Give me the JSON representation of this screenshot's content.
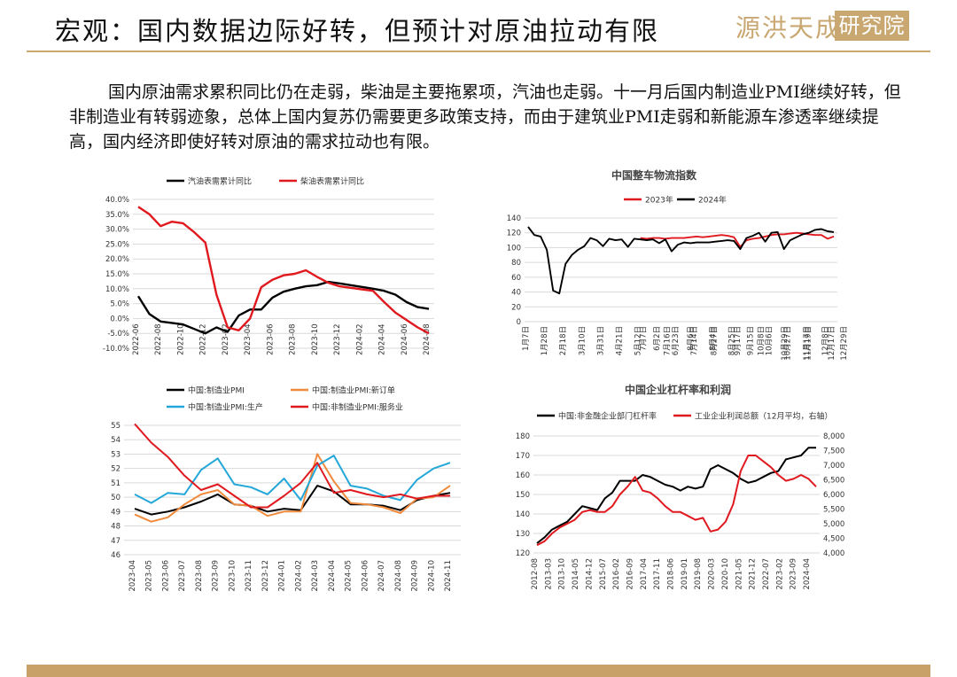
{
  "header": {
    "title": "宏观：国内数据边际好转，但预计对原油拉动有限",
    "logo_text": "源洪天成",
    "logo_box_text": "研究院",
    "accent_color": "#c9a771"
  },
  "body": {
    "paragraph": "国内原油需求累积同比仍在走弱，柴油是主要拖累项，汽油也走弱。十一月后国内制造业PMI继续好转，但非制造业有转弱迹象，总体上国内复苏仍需要更多政策支持，而由于建筑业PMI走弱和新能源车渗透率继续提高，国内经济即使好转对原油的需求拉动也有限。"
  },
  "chart_data": [
    {
      "type": "line",
      "title": "",
      "y_ticks": [
        "40.0%",
        "35.0%",
        "30.0%",
        "25.0%",
        "20.0%",
        "15.0%",
        "10.0%",
        "5.0%",
        "0.0%",
        "-5.0%",
        "-10.0%"
      ],
      "ylim": [
        -10,
        40
      ],
      "x_tick_labels": [
        "2022-06",
        "2022-08",
        "2022-10",
        "2022-12",
        "2023-02",
        "2023-04",
        "2023-06",
        "2023-08",
        "2023-10",
        "2023-12",
        "2024-02",
        "2024-04",
        "2024-06",
        "2024-08"
      ],
      "n_points": 27,
      "series": [
        {
          "name": "汽油表需累计同比",
          "color": "#000000",
          "values": [
            7.5,
            1.5,
            -1,
            -1.5,
            -2,
            -3.5,
            -5,
            -3,
            -4.5,
            1,
            3,
            3,
            7,
            9,
            10,
            10.8,
            11.2,
            12.3,
            11.8,
            11.2,
            10.6,
            10,
            9.3,
            8,
            5.5,
            3.8,
            3.2
          ]
        },
        {
          "name": "柴油表需累计同比",
          "color": "#e0191f",
          "values": [
            37.5,
            35,
            31,
            32.5,
            32,
            29,
            25.5,
            8,
            -3,
            -4,
            0,
            10.5,
            13,
            14.5,
            15,
            16.2,
            14,
            12,
            10.8,
            10.3,
            9.8,
            9.3,
            5.5,
            2,
            -0.5,
            -3,
            -5
          ]
        }
      ]
    },
    {
      "type": "line",
      "title": "中国整车物流指数",
      "y_ticks": [
        "140",
        "120",
        "100",
        "80",
        "60",
        "40",
        "20",
        "0"
      ],
      "ylim": [
        0,
        140
      ],
      "x_tick_labels": [
        "1月7日",
        "1月28日",
        "2月18日",
        "3月10日",
        "3月31日",
        "4月21日",
        "5月12日",
        "6月2日",
        "6月23日",
        "7月14日",
        "8月4日",
        "8月25日",
        "9月15日",
        "10月6日",
        "10月27日",
        "11月17日",
        "12月8日",
        "12月29日"
      ],
      "x_tick_labels_right": [
        "7月7日",
        "7月16日",
        "8月6日",
        "8月27日",
        "9月17日",
        "10月8日",
        "10月29日",
        "11月19日",
        "12月17日"
      ],
      "n_points": 50,
      "series": [
        {
          "name": "2023年",
          "color": "#e0191f",
          "start_index": 18,
          "values": [
            113,
            112,
            113,
            113,
            112,
            113,
            113,
            113,
            114,
            115,
            114,
            115,
            116,
            117,
            116,
            114,
            101,
            110,
            112,
            113,
            115,
            117,
            118,
            118,
            119,
            120,
            119,
            118,
            117,
            117,
            112,
            115
          ]
        },
        {
          "name": "2024年",
          "color": "#000000",
          "start_index": 0,
          "values": [
            128,
            117,
            115,
            97,
            42,
            38,
            78,
            90,
            97,
            102,
            113,
            110,
            102,
            112,
            110,
            111,
            101,
            112,
            111,
            110,
            111,
            106,
            111,
            95,
            104,
            107,
            106,
            107,
            107,
            107,
            108,
            109,
            110,
            109,
            98,
            113,
            116,
            120,
            108,
            120,
            121,
            98,
            110,
            114,
            118,
            120,
            124,
            125,
            122,
            121
          ]
        }
      ]
    },
    {
      "type": "line",
      "title": "",
      "y_ticks": [
        "55",
        "54",
        "53",
        "52",
        "51",
        "50",
        "49",
        "48",
        "47",
        "46"
      ],
      "ylim": [
        46,
        55
      ],
      "x_tick_labels": [
        "2023-04",
        "2023-05",
        "2023-06",
        "2023-07",
        "2023-08",
        "2023-09",
        "2023-10",
        "2023-11",
        "2023-12",
        "2024-01",
        "2024-02",
        "2024-03",
        "2024-04",
        "2024-05",
        "2024-06",
        "2024-07",
        "2024-08",
        "2024-09",
        "2024-10",
        "2024-11"
      ],
      "series": [
        {
          "name": "中国:制造业PMI",
          "color": "#000000",
          "values": [
            49.2,
            48.8,
            49.0,
            49.3,
            49.7,
            50.2,
            49.5,
            49.4,
            49.0,
            49.2,
            49.1,
            50.8,
            50.4,
            49.5,
            49.5,
            49.4,
            49.1,
            49.8,
            50.1,
            50.3
          ]
        },
        {
          "name": "中国:制造业PMI:新订单",
          "color": "#f08a3c",
          "values": [
            48.8,
            48.3,
            48.6,
            49.5,
            50.2,
            50.5,
            49.5,
            49.4,
            48.7,
            49.0,
            49.0,
            53.0,
            51.1,
            49.6,
            49.5,
            49.3,
            48.9,
            49.9,
            50.0,
            50.8
          ]
        },
        {
          "name": "中国:制造业PMI:生产",
          "color": "#22a7d8",
          "values": [
            50.2,
            49.6,
            50.3,
            50.2,
            51.9,
            52.7,
            50.9,
            50.7,
            50.2,
            51.3,
            49.8,
            52.2,
            52.9,
            50.8,
            50.6,
            50.1,
            49.8,
            51.2,
            52.0,
            52.4
          ]
        },
        {
          "name": "中国:非制造业PMI:服务业",
          "color": "#e0191f",
          "values": [
            55.1,
            53.8,
            52.8,
            51.5,
            50.5,
            50.9,
            50.1,
            49.3,
            49.3,
            50.1,
            51.0,
            52.4,
            50.3,
            50.5,
            50.2,
            50.0,
            50.2,
            49.9,
            50.1,
            50.1
          ]
        }
      ]
    },
    {
      "type": "line",
      "title": "中国企业杠杆率和利润",
      "y_ticks_left": [
        "180",
        "170",
        "160",
        "150",
        "140",
        "130",
        "120"
      ],
      "ylim_left": [
        120,
        180
      ],
      "y_ticks_right": [
        "8,000",
        "7,500",
        "7,000",
        "6,500",
        "6,000",
        "5,500",
        "5,000",
        "4,500",
        "4,000"
      ],
      "ylim_right": [
        4000,
        8000
      ],
      "x_tick_labels": [
        "2012-08",
        "2013-03",
        "2013-10",
        "2014-05",
        "2014-12",
        "2015-07",
        "2016-02",
        "2016-09",
        "2017-04",
        "2017-11",
        "2018-06",
        "2019-01",
        "2019-08",
        "2020-03",
        "2020-10",
        "2021-05",
        "2021-12",
        "2022-07",
        "2023-02",
        "2023-09",
        "2024-04"
      ],
      "series": [
        {
          "name": "中国:非金融企业部门杠杆率",
          "color": "#000000",
          "axis": "left",
          "values": [
            125,
            128,
            132,
            134,
            136,
            140,
            144,
            143,
            142,
            148,
            151,
            157,
            157,
            157,
            160,
            159,
            157,
            155,
            154,
            152,
            154,
            153,
            154,
            163,
            165,
            163,
            161,
            158,
            156,
            157,
            159,
            161,
            162,
            168,
            169,
            170,
            174,
            174
          ]
        },
        {
          "name": "工业企业利润总额（12月平均，右轴）",
          "color": "#e0191f",
          "axis": "left",
          "values": [
            124,
            126,
            130,
            133,
            135,
            137,
            141,
            142,
            141,
            141,
            144,
            150,
            154,
            159,
            152,
            151,
            148,
            144,
            141,
            141,
            139,
            137,
            138,
            131,
            132,
            136,
            145,
            162,
            170,
            170,
            167,
            164,
            160,
            157,
            158,
            160,
            158,
            154
          ]
        }
      ]
    }
  ]
}
